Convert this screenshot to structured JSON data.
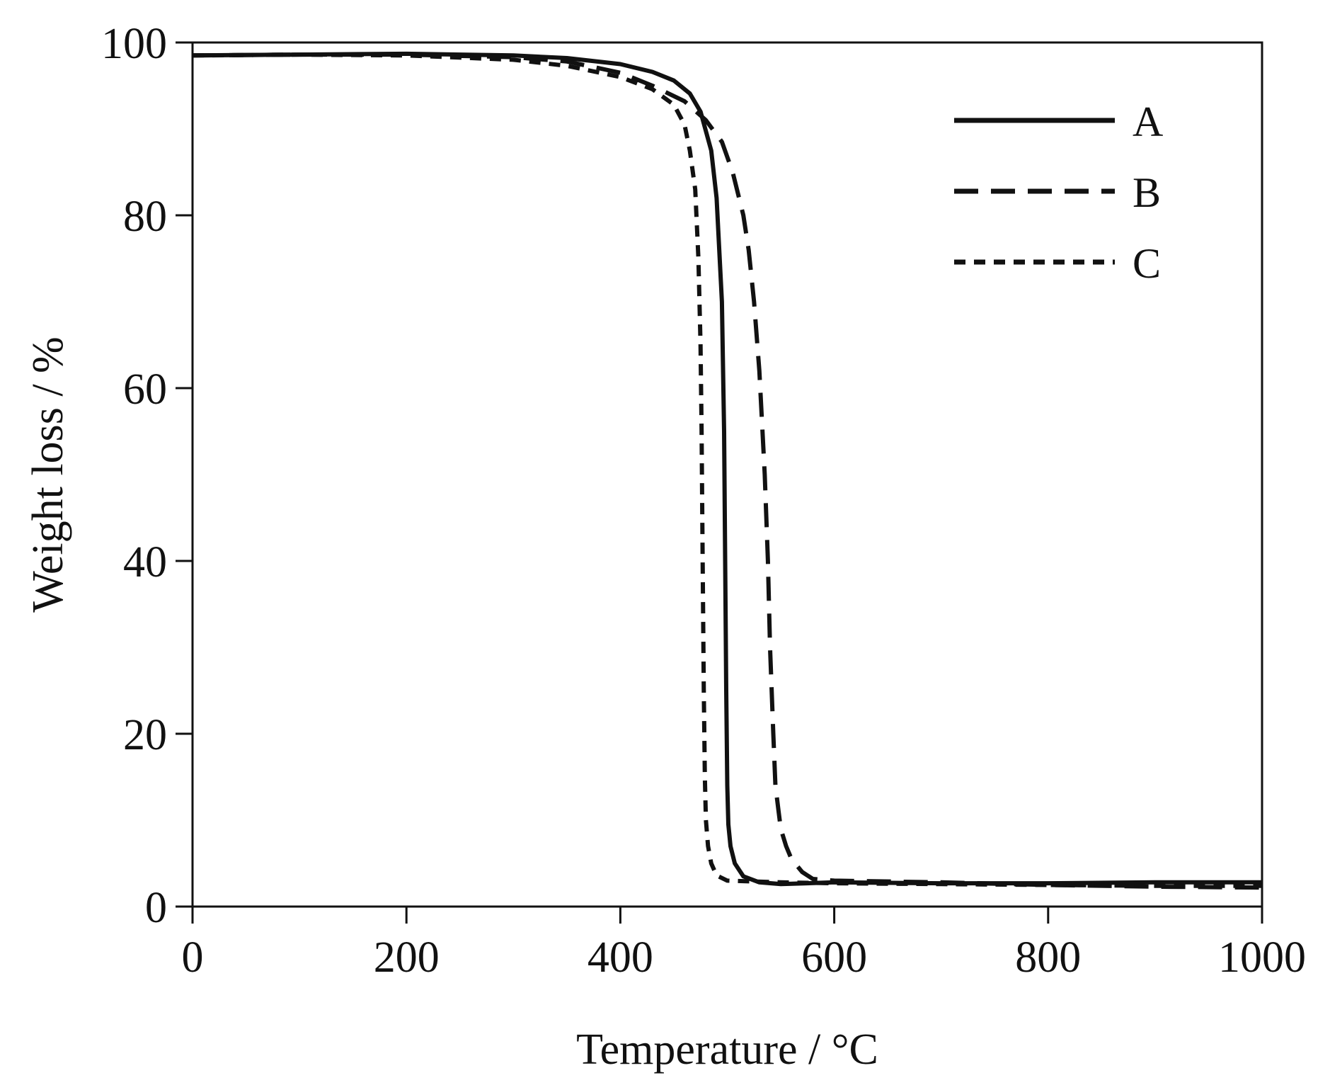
{
  "chart_data": {
    "type": "line",
    "xlabel": "Temperature / °C",
    "ylabel": "Weight loss / %",
    "xlim": [
      0,
      1000
    ],
    "ylim": [
      0,
      100
    ],
    "xticks": [
      0,
      200,
      400,
      600,
      800,
      1000
    ],
    "yticks": [
      0,
      20,
      40,
      60,
      80,
      100
    ],
    "grid": false,
    "legend_position": "top-right",
    "series": [
      {
        "name": "A",
        "line_style": "solid",
        "color": "#111111",
        "x": [
          0,
          100,
          200,
          300,
          350,
          400,
          430,
          450,
          465,
          475,
          485,
          490,
          495,
          497,
          498,
          499,
          500,
          501,
          503,
          507,
          515,
          530,
          550,
          600,
          700,
          800,
          900,
          1000
        ],
        "y": [
          98.5,
          98.6,
          98.7,
          98.5,
          98.2,
          97.5,
          96.6,
          95.6,
          94.1,
          92.0,
          87.5,
          82.0,
          70.0,
          55.0,
          40.0,
          25.0,
          14.0,
          9.5,
          7.0,
          5.0,
          3.5,
          2.8,
          2.6,
          2.8,
          2.7,
          2.7,
          2.8,
          2.8
        ]
      },
      {
        "name": "B",
        "line_style": "long-dash",
        "color": "#111111",
        "x": [
          0,
          100,
          200,
          300,
          350,
          400,
          430,
          460,
          480,
          495,
          505,
          515,
          520,
          525,
          530,
          535,
          538,
          540,
          543,
          545,
          548,
          550,
          555,
          560,
          570,
          580,
          600,
          700,
          800,
          900,
          1000
        ],
        "y": [
          98.5,
          98.6,
          98.6,
          98.3,
          97.8,
          96.5,
          95.0,
          93.2,
          91.0,
          88.5,
          85.0,
          80.0,
          76.0,
          70.0,
          62.0,
          50.0,
          40.0,
          30.0,
          20.0,
          14.0,
          11.0,
          9.0,
          7.0,
          5.5,
          4.0,
          3.2,
          3.0,
          2.8,
          2.5,
          2.3,
          2.2
        ]
      },
      {
        "name": "C",
        "line_style": "short-dash",
        "color": "#111111",
        "x": [
          0,
          100,
          200,
          300,
          350,
          400,
          430,
          450,
          460,
          465,
          470,
          473,
          475,
          476,
          477,
          478,
          479,
          480,
          482,
          485,
          490,
          500,
          550,
          600,
          700,
          800,
          900,
          1000
        ],
        "y": [
          98.5,
          98.6,
          98.5,
          98.0,
          97.3,
          96.0,
          94.6,
          92.8,
          90.5,
          87.5,
          83.0,
          75.0,
          65.0,
          55.0,
          40.0,
          25.0,
          15.0,
          10.0,
          7.0,
          5.0,
          3.6,
          3.0,
          2.8,
          2.7,
          2.6,
          2.5,
          2.4,
          2.4
        ]
      }
    ]
  }
}
